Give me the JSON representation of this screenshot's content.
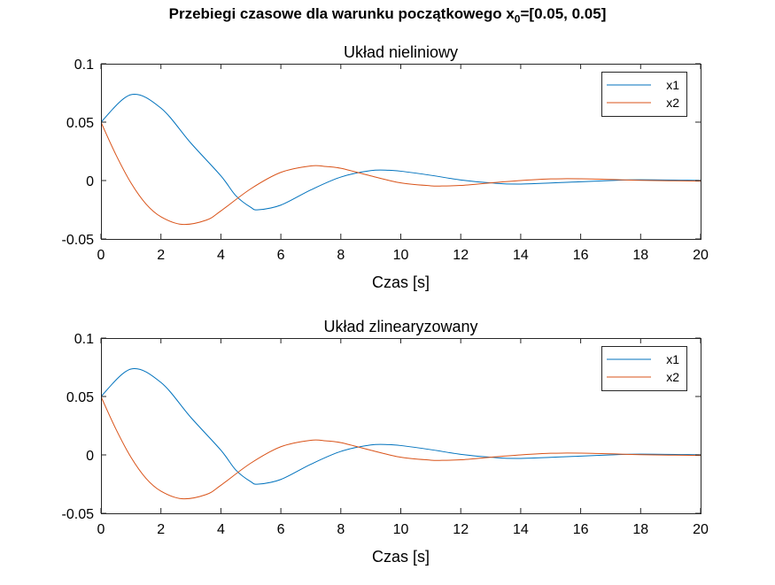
{
  "figure": {
    "suptitle_prefix": "Przebiegi czasowe dla warunku początkowego x",
    "suptitle_sub": "0",
    "suptitle_suffix": "=[0.05, 0.05]"
  },
  "colors": {
    "x1": "#0072BD",
    "x2": "#D95319",
    "axes": "#262626",
    "grid": "#ffffff"
  },
  "chart_data": [
    {
      "type": "line",
      "title": "Układ nieliniowy",
      "xlabel": "Czas [s]",
      "ylabel": "",
      "xlim": [
        0,
        20
      ],
      "ylim": [
        -0.05,
        0.1
      ],
      "xticks": [
        0,
        2,
        4,
        6,
        8,
        10,
        12,
        14,
        16,
        18,
        20
      ],
      "yticks": [
        -0.05,
        0,
        0.05,
        0.1
      ],
      "ytick_labels": [
        "-0.05",
        "0",
        "0.05",
        "0.1"
      ],
      "legend_position": "top-right",
      "series": [
        {
          "name": "x1",
          "x": [
            0,
            1,
            2,
            3,
            4,
            4.5,
            5,
            5.25,
            6,
            7,
            8,
            9,
            9.6,
            10,
            11,
            12,
            13,
            14,
            16,
            17,
            18,
            20
          ],
          "y": [
            0.05,
            0.0735,
            0.062,
            0.032,
            0.004,
            -0.013,
            -0.023,
            -0.025,
            -0.021,
            -0.008,
            0.003,
            0.0085,
            0.0088,
            0.008,
            0.0045,
            0.0005,
            -0.002,
            -0.003,
            -0.001,
            0,
            0.0007,
            0.0001
          ]
        },
        {
          "name": "x2",
          "x": [
            0,
            0.5,
            1,
            1.5,
            2,
            2.7,
            3.5,
            4,
            5,
            6,
            7,
            7.5,
            8,
            9,
            10,
            11,
            11.3,
            12,
            13,
            14,
            15,
            16,
            17,
            18,
            20
          ],
          "y": [
            0.05,
            0.022,
            -0.002,
            -0.02,
            -0.031,
            -0.0375,
            -0.034,
            -0.026,
            -0.007,
            0.007,
            0.0125,
            0.012,
            0.0105,
            0.004,
            -0.002,
            -0.0045,
            -0.0047,
            -0.0042,
            -0.002,
            0,
            0.0014,
            0.0015,
            0.0009,
            0.0002,
            -0.0005
          ]
        }
      ]
    },
    {
      "type": "line",
      "title": "Układ zlinearyzowany",
      "xlabel": "Czas [s]",
      "ylabel": "",
      "xlim": [
        0,
        20
      ],
      "ylim": [
        -0.05,
        0.1
      ],
      "xticks": [
        0,
        2,
        4,
        6,
        8,
        10,
        12,
        14,
        16,
        18,
        20
      ],
      "yticks": [
        -0.05,
        0,
        0.05,
        0.1
      ],
      "ytick_labels": [
        "-0.05",
        "0",
        "0.05",
        "0.1"
      ],
      "legend_position": "top-right",
      "series": [
        {
          "name": "x1",
          "x": [
            0,
            1,
            2,
            3,
            4,
            4.5,
            5,
            5.25,
            6,
            7,
            8,
            9,
            9.6,
            10,
            11,
            12,
            13,
            14,
            16,
            17,
            18,
            20
          ],
          "y": [
            0.05,
            0.0735,
            0.062,
            0.032,
            0.004,
            -0.013,
            -0.023,
            -0.025,
            -0.021,
            -0.008,
            0.003,
            0.0085,
            0.0088,
            0.008,
            0.0045,
            0.0005,
            -0.002,
            -0.003,
            -0.001,
            0,
            0.0007,
            0.0001
          ]
        },
        {
          "name": "x2",
          "x": [
            0,
            0.5,
            1,
            1.5,
            2,
            2.7,
            3.5,
            4,
            5,
            6,
            7,
            7.5,
            8,
            9,
            10,
            11,
            11.3,
            12,
            13,
            14,
            15,
            16,
            17,
            18,
            20
          ],
          "y": [
            0.05,
            0.022,
            -0.002,
            -0.02,
            -0.031,
            -0.0375,
            -0.034,
            -0.026,
            -0.007,
            0.007,
            0.0125,
            0.012,
            0.0105,
            0.004,
            -0.002,
            -0.0045,
            -0.0047,
            -0.0042,
            -0.002,
            0,
            0.0014,
            0.0015,
            0.0009,
            0.0002,
            -0.0005
          ]
        }
      ]
    }
  ]
}
